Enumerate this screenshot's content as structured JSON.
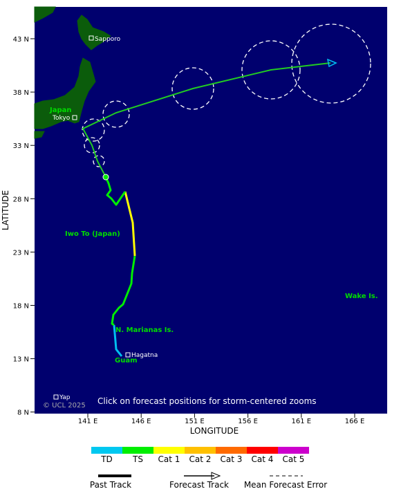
{
  "map": {
    "lat_ticks": [
      "43 N",
      "38 N",
      "33 N",
      "28 N",
      "23 N",
      "18 N",
      "13 N",
      "8 N"
    ],
    "lon_ticks": [
      "141 E",
      "146 E",
      "151 E",
      "156 E",
      "161 E",
      "166 E"
    ],
    "y_axis_label": "LATITUDE",
    "x_axis_label": "LONGITUDE",
    "places": {
      "sapporo": "Sapporo",
      "tokyo": "Tokyo",
      "japan": "Japan",
      "iwo_to": "Iwo To (Japan)",
      "marianas": "N. Marianas Is.",
      "guam": "Guam",
      "hagatna": "Hagatna",
      "wake": "Wake Is.",
      "yap": "Yap"
    },
    "note": "Click on forecast positions for storm-centered zooms",
    "copyright": "© UCL 2025"
  },
  "legend": {
    "categories": [
      "TD",
      "TS",
      "Cat 1",
      "Cat 2",
      "Cat 3",
      "Cat 4",
      "Cat 5"
    ],
    "lines": [
      "Past Track",
      "Forecast Track",
      "Mean Forecast Error"
    ]
  }
}
